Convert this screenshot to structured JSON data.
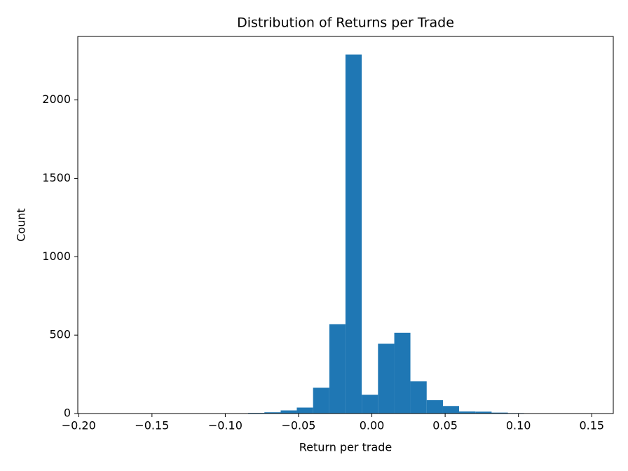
{
  "chart_data": {
    "type": "histogram",
    "title": "Distribution of Returns per Trade",
    "x_label": "Return per trade",
    "y_label": "Count",
    "color": "#1f77b4",
    "bins": [
      -0.184,
      -0.1729,
      -0.1619,
      -0.1508,
      -0.1397,
      -0.1287,
      -0.1176,
      -0.1065,
      -0.0954,
      -0.0844,
      -0.0733,
      -0.0622,
      -0.0512,
      -0.0401,
      -0.029,
      -0.018,
      -0.0069,
      0.0042,
      0.0153,
      0.0263,
      0.0374,
      0.0485,
      0.0595,
      0.0706,
      0.0817,
      0.0928,
      0.1038,
      0.1149,
      0.126,
      0.137,
      0.1481
    ],
    "counts": [
      1,
      0,
      0,
      0,
      0,
      0,
      0,
      1,
      2,
      4,
      8,
      20,
      38,
      165,
      570,
      2290,
      120,
      445,
      515,
      205,
      85,
      48,
      13,
      12,
      6,
      3,
      1,
      1,
      0,
      1
    ],
    "xlim": [
      -0.2006,
      0.1647
    ],
    "xticks": [
      {
        "value": -0.2,
        "label": "−0.20"
      },
      {
        "value": -0.15,
        "label": "−0.15"
      },
      {
        "value": -0.1,
        "label": "−0.10"
      },
      {
        "value": -0.05,
        "label": "−0.05"
      },
      {
        "value": 0,
        "label": "0.00"
      },
      {
        "value": 0.05,
        "label": "0.05"
      },
      {
        "value": 0.1,
        "label": "0.10"
      },
      {
        "value": 0.15,
        "label": "0.15"
      }
    ],
    "ylim": [
      0,
      2405
    ],
    "yticks": [
      0,
      500,
      1000,
      1500,
      2000
    ]
  }
}
